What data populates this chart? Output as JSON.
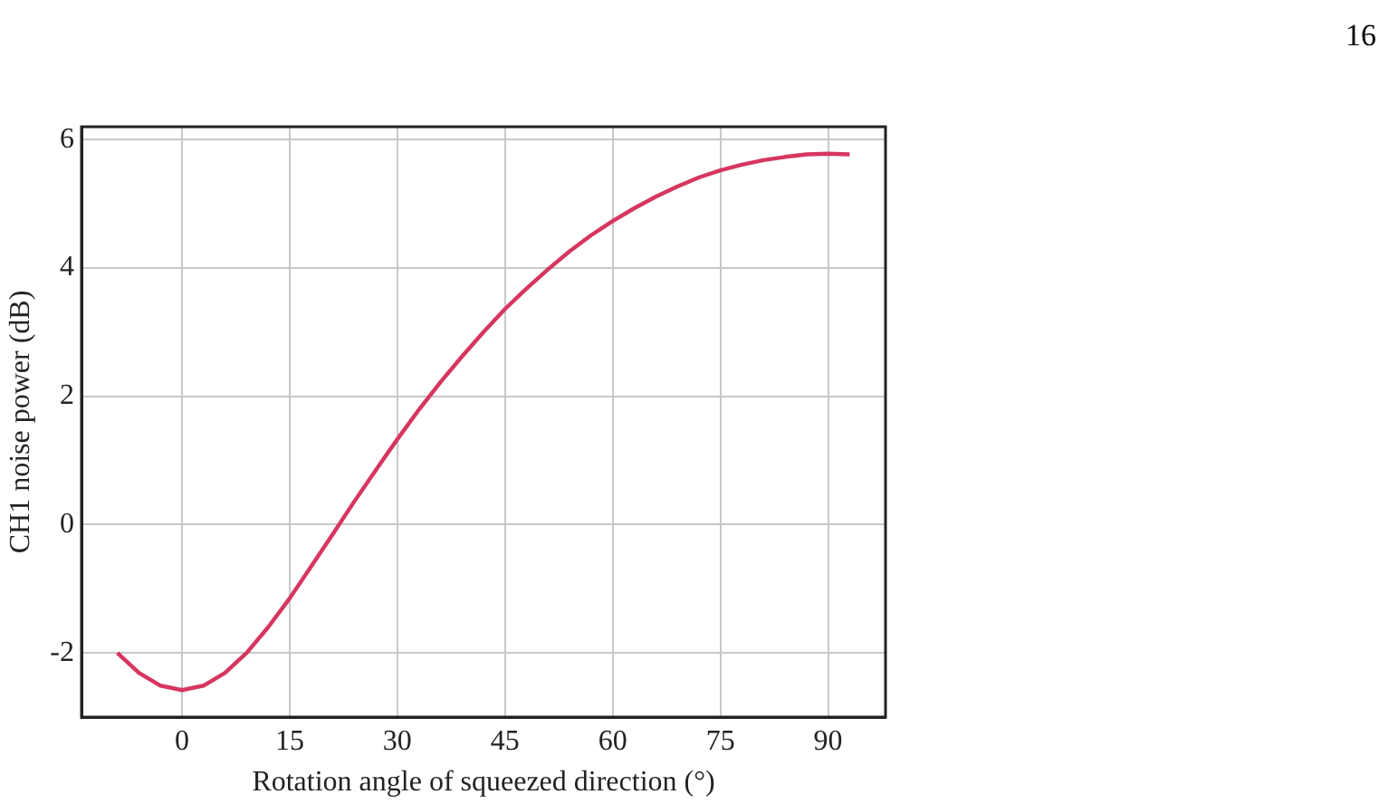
{
  "chart_data": {
    "type": "line",
    "xlabel": "Rotation angle of squeezed direction (°)",
    "ylabel": "CH1 noise power (dB)",
    "annotations": [
      "16"
    ],
    "x": [
      -9,
      -6,
      -3,
      0,
      3,
      6,
      9,
      12,
      15,
      18,
      21,
      24,
      27,
      30,
      33,
      36,
      39,
      42,
      45,
      48,
      51,
      54,
      57,
      60,
      63,
      66,
      69,
      72,
      75,
      78,
      81,
      84,
      87,
      90,
      93
    ],
    "series": [
      {
        "color": "#d6365f",
        "values": [
          -2.0,
          -2.31,
          -2.51,
          -2.58,
          -2.51,
          -2.31,
          -2.0,
          -1.6,
          -1.15,
          -0.65,
          -0.15,
          0.36,
          0.85,
          1.33,
          1.79,
          2.22,
          2.62,
          3.0,
          3.36,
          3.68,
          3.98,
          4.26,
          4.51,
          4.73,
          4.93,
          5.11,
          5.27,
          5.41,
          5.52,
          5.61,
          5.68,
          5.73,
          5.77,
          5.78,
          5.77
        ]
      }
    ],
    "xlim": [
      -14,
      98
    ],
    "xticks": [
      0,
      15,
      30,
      45,
      60,
      75,
      90
    ],
    "ylim": [
      -3,
      6.2
    ],
    "yticks": [
      -2,
      0,
      2,
      4,
      6
    ],
    "grid": true,
    "legend": false,
    "marker": "none",
    "line_style": "solid"
  }
}
